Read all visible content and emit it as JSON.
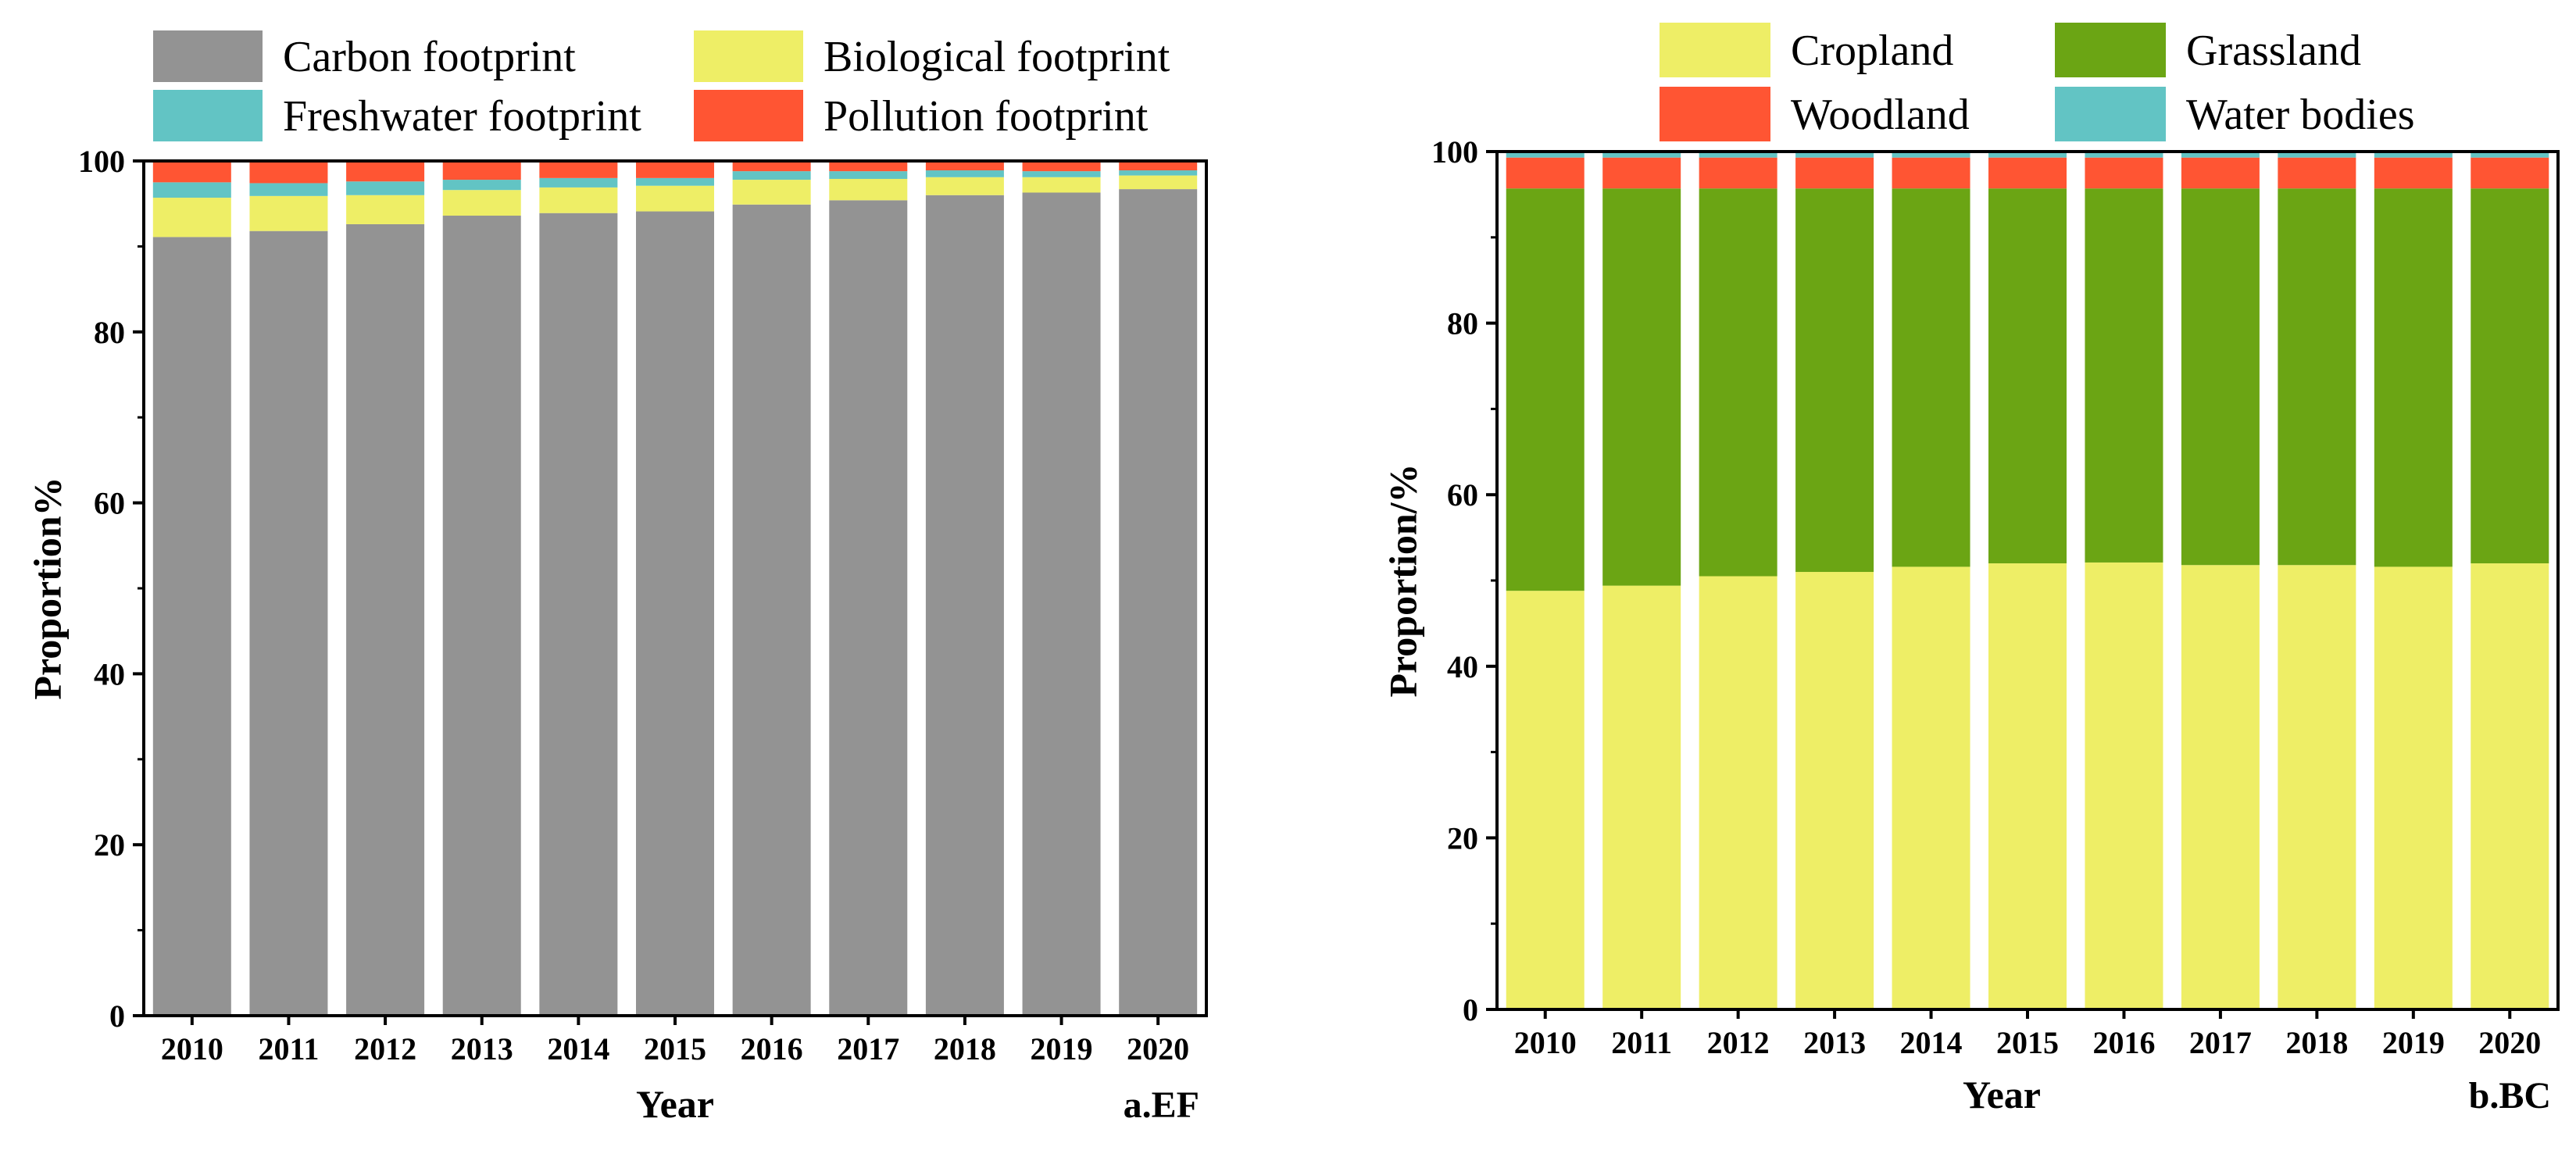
{
  "chart_data": [
    {
      "type": "bar",
      "stacked": true,
      "panel_label": "a.EF",
      "xlabel": "Year",
      "ylabel": "Proportion%",
      "ylim": [
        0,
        100
      ],
      "yticks": [
        0,
        20,
        40,
        60,
        80,
        100
      ],
      "categories": [
        "2010",
        "2011",
        "2012",
        "2013",
        "2014",
        "2015",
        "2016",
        "2017",
        "2018",
        "2019",
        "2020"
      ],
      "series": [
        {
          "name": "Carbon footprint",
          "color": "#939393",
          "values": [
            91.1,
            91.8,
            92.6,
            93.6,
            93.9,
            94.1,
            94.9,
            95.4,
            96.0,
            96.3,
            96.7
          ]
        },
        {
          "name": "Biological footprint",
          "color": "#eeee66",
          "values": [
            4.6,
            4.1,
            3.4,
            3.0,
            3.0,
            3.0,
            2.9,
            2.5,
            2.1,
            1.8,
            1.6
          ]
        },
        {
          "name": "Freshwater footprint",
          "color": "#62c4c4",
          "values": [
            1.8,
            1.5,
            1.6,
            1.2,
            1.1,
            0.9,
            1.0,
            0.9,
            0.8,
            0.7,
            0.6
          ]
        },
        {
          "name": "Pollution footprint",
          "color": "#ff5533",
          "values": [
            2.5,
            2.6,
            2.4,
            2.2,
            2.0,
            2.0,
            1.2,
            1.2,
            1.1,
            1.2,
            1.1
          ]
        }
      ]
    },
    {
      "type": "bar",
      "stacked": true,
      "panel_label": "b.BC",
      "xlabel": "Year",
      "ylabel": "Proportion/%",
      "ylim": [
        0,
        100
      ],
      "yticks": [
        0,
        20,
        40,
        60,
        80,
        100
      ],
      "categories": [
        "2010",
        "2011",
        "2012",
        "2013",
        "2014",
        "2015",
        "2016",
        "2017",
        "2018",
        "2019",
        "2020"
      ],
      "series": [
        {
          "name": "Cropland",
          "color": "#eeee66",
          "values": [
            48.8,
            49.4,
            50.5,
            51.0,
            51.6,
            52.0,
            52.1,
            51.8,
            51.8,
            51.6,
            52.0
          ]
        },
        {
          "name": "Grassland",
          "color": "#6ba514",
          "values": [
            46.9,
            46.3,
            45.2,
            44.7,
            44.1,
            43.7,
            43.6,
            43.9,
            43.9,
            44.1,
            43.7
          ]
        },
        {
          "name": "Woodland",
          "color": "#ff5533",
          "values": [
            3.6,
            3.6,
            3.6,
            3.6,
            3.6,
            3.6,
            3.6,
            3.6,
            3.6,
            3.6,
            3.6
          ]
        },
        {
          "name": "Water bodies",
          "color": "#62c4c4",
          "values": [
            0.7,
            0.7,
            0.7,
            0.7,
            0.7,
            0.7,
            0.7,
            0.7,
            0.7,
            0.7,
            0.7
          ]
        }
      ]
    }
  ]
}
